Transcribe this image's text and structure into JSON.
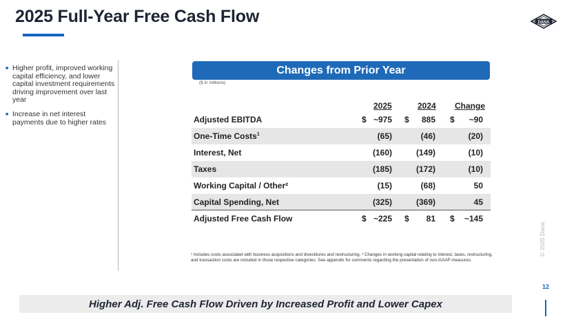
{
  "title": "2025 Full-Year Free Cash Flow",
  "logo_text": "DANA",
  "colors": {
    "accent": "#1565c0",
    "banner": "#1e6ab8",
    "shade": "#e6e6e6"
  },
  "bullets": [
    "Higher profit, improved working capital efficiency, and lower capital investment requirements driving improvement over last year",
    "Increase in net interest payments due to higher rates"
  ],
  "banner": "Changes from Prior Year",
  "units_note": "($ in millions)",
  "columns": [
    "2025",
    "2024",
    "Change"
  ],
  "rows": [
    {
      "label": "Adjusted EBITDA",
      "sup": "",
      "v2025": "~975",
      "v2024": "885",
      "change": "~90",
      "dollar": "$"
    },
    {
      "label": "One-Time Costs",
      "sup": "1",
      "v2025": "(65)",
      "v2024": "(46)",
      "change": "(20)",
      "dollar": ""
    },
    {
      "label": "Interest, Net",
      "sup": "",
      "v2025": "(160)",
      "v2024": "(149)",
      "change": "(10)",
      "dollar": ""
    },
    {
      "label": "Taxes",
      "sup": "",
      "v2025": "(185)",
      "v2024": "(172)",
      "change": "(10)",
      "dollar": ""
    },
    {
      "label": "Working Capital / Other²",
      "sup": "",
      "v2025": "(15)",
      "v2024": "(68)",
      "change": "50",
      "dollar": ""
    },
    {
      "label": "Capital Spending, Net",
      "sup": "",
      "v2025": "(325)",
      "v2024": "(369)",
      "change": "45",
      "dollar": ""
    },
    {
      "label": "Adjusted Free Cash Flow",
      "sup": "",
      "v2025": "~225",
      "v2024": "81",
      "change": "~145",
      "dollar": "$"
    }
  ],
  "footnote": "¹ Includes costs associated with business acquisitions and divestitures and restructuring. ² Changes in working capital relating to interest, taxes, restructuring, and transaction costs are included in those respective categories.  See appendix for comments regarding the presentation of non-GAAP measures.",
  "copyright": "© 2025 Dana",
  "page_number": "12",
  "bottom_banner": "Higher Adj. Free Cash Flow Driven by Increased Profit and Lower Capex"
}
